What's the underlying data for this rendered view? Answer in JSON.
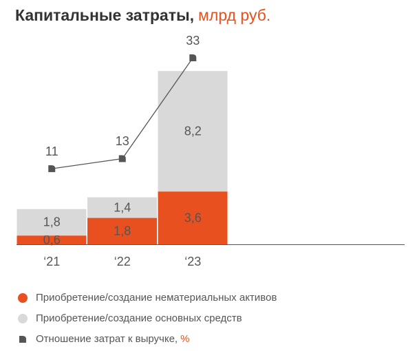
{
  "chart_data": {
    "type": "bar",
    "stacked": true,
    "title": "Капитальные затраты,",
    "unit": "млрд руб.",
    "categories": [
      "‘21",
      "‘22",
      "‘23"
    ],
    "ylim": [
      0,
      12.7
    ],
    "y2lim": [
      -4,
      33
    ],
    "series": [
      {
        "name": "Приобретение/создание нематериальных активов",
        "color": "#e8501f",
        "values": [
          0.6,
          1.8,
          3.6
        ],
        "value_labels": [
          "0,6",
          "1,8",
          "3,6"
        ]
      },
      {
        "name": "Приобретение/создание основных средств",
        "color": "#d9d9d9",
        "values": [
          1.8,
          1.4,
          8.2
        ],
        "value_labels": [
          "1,8",
          "1,4",
          "8,2"
        ]
      },
      {
        "name": "Отношение затрат к выручке,",
        "unit": "%",
        "type": "line",
        "axis": "y2",
        "color": "#555555",
        "values": [
          11,
          13,
          33
        ]
      }
    ]
  }
}
